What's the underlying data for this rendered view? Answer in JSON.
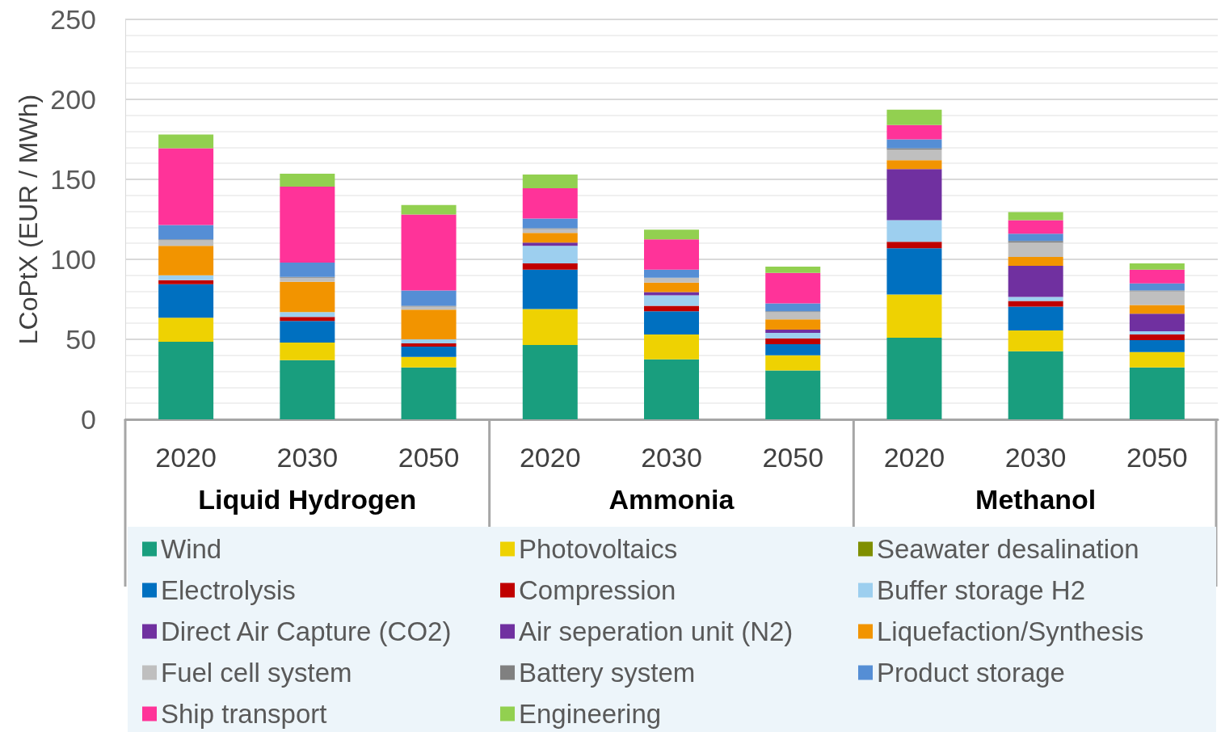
{
  "chart_data": {
    "type": "bar",
    "stacked": true,
    "ylabel": "LCoPtX (EUR / MWh)",
    "categories": [
      "2020",
      "2030",
      "2050",
      "2020",
      "2030",
      "2050",
      "2020",
      "2030",
      "2050"
    ],
    "annotations": [
      "Liquid Hydrogen",
      "Ammonia",
      "Methanol"
    ],
    "ylim": [
      0,
      250
    ],
    "yticks": [
      0,
      50,
      100,
      150,
      200,
      250
    ],
    "grid": "y",
    "legend": "bottom",
    "series": [
      {
        "name": "Wind",
        "color": "#199e7e",
        "values": [
          48.5,
          37,
          32.5,
          46.5,
          37.5,
          30.5,
          51,
          42.5,
          32.5
        ]
      },
      {
        "name": "Photovoltaics",
        "color": "#eed202",
        "values": [
          15,
          11,
          6.5,
          22.5,
          15.5,
          9.5,
          27,
          13,
          9.5
        ]
      },
      {
        "name": "Seawater desalination",
        "color": "#7f8f00",
        "values": [
          0,
          0,
          0,
          0,
          0,
          0,
          0,
          0,
          0
        ]
      },
      {
        "name": "Electrolysis",
        "color": "#0070c0",
        "values": [
          21,
          13.5,
          6.5,
          24.5,
          14.5,
          7,
          29,
          15,
          7.5
        ]
      },
      {
        "name": "Compression",
        "color": "#c00000",
        "values": [
          2.5,
          2.5,
          2,
          4,
          3.5,
          3.5,
          4,
          3.5,
          3.5
        ]
      },
      {
        "name": "Buffer storage H2",
        "color": "#9dcfef",
        "values": [
          3,
          3,
          2.5,
          11,
          6.5,
          3.5,
          13.5,
          2.5,
          2
        ]
      },
      {
        "name": "Direct Air Capture (CO2)",
        "color": "#7030a0",
        "values": [
          0,
          0,
          0,
          0,
          0,
          0,
          32,
          19.5,
          11
        ]
      },
      {
        "name": "Air seperation unit (N2)",
        "color": "#7030a0",
        "values": [
          0,
          0,
          0,
          2,
          2,
          2,
          0,
          0,
          0
        ]
      },
      {
        "name": "Liquefaction/Synthesis",
        "color": "#f29400",
        "values": [
          18.5,
          19,
          18.5,
          6,
          6,
          6.5,
          5.5,
          5.5,
          5.5
        ]
      },
      {
        "name": "Fuel cell system",
        "color": "#bfbfbf",
        "values": [
          3.5,
          2.5,
          2,
          2.5,
          3,
          4.5,
          6.5,
          9,
          8.5
        ]
      },
      {
        "name": "Battery system",
        "color": "#808080",
        "values": [
          0.5,
          0.5,
          0.5,
          0.5,
          0,
          0.5,
          1,
          1,
          0.5
        ]
      },
      {
        "name": "Product storage",
        "color": "#558ed5",
        "values": [
          9,
          9,
          9.5,
          6,
          5,
          5,
          5.5,
          4.5,
          4.5
        ]
      },
      {
        "name": "Ship transport",
        "color": "#ff3399",
        "values": [
          48,
          47.5,
          47.5,
          19,
          19,
          19,
          9,
          8.5,
          8.5
        ]
      },
      {
        "name": "Engineering",
        "color": "#92d050",
        "values": [
          8.5,
          8,
          6,
          8.5,
          6,
          4,
          9.5,
          5,
          4
        ]
      }
    ]
  }
}
